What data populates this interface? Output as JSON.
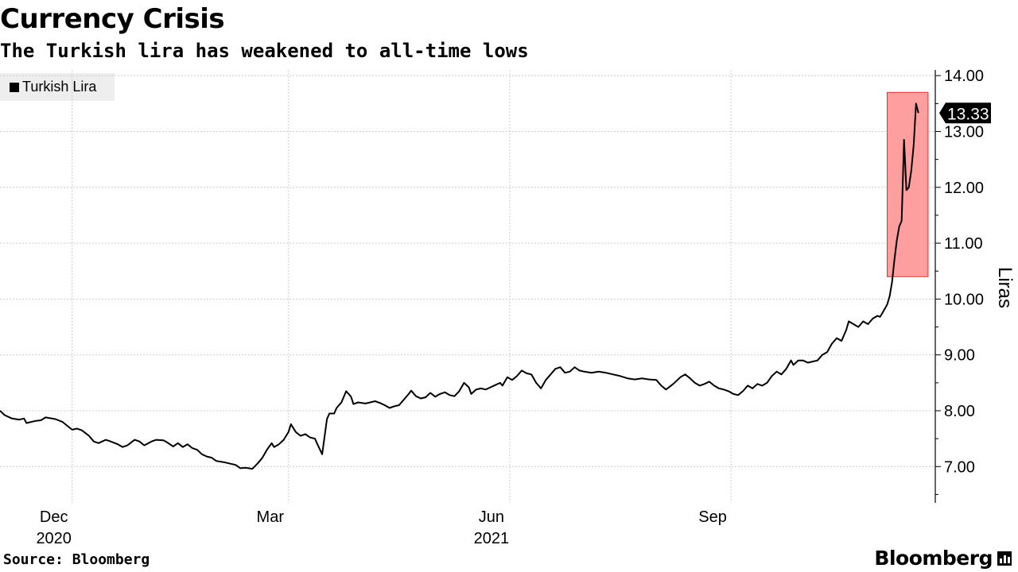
{
  "title": "Currency Crisis",
  "subtitle": "The Turkish lira has weakened to all-time lows",
  "source": "Source: Bloomberg",
  "brand": "Bloomberg",
  "colors": {
    "line": "#000000",
    "highlight_fill": "#ff9e9e",
    "highlight_stroke": "#e03030",
    "grid": "#cccccc"
  },
  "chart_data": {
    "type": "line",
    "title": "Currency Crisis",
    "subtitle": "The Turkish lira has weakened to all-time lows",
    "ylabel": "Liras",
    "ylim": [
      6.4,
      14.2
    ],
    "y_ticks": [
      7,
      8,
      9,
      10,
      11,
      12,
      13,
      14
    ],
    "y_tick_labels": [
      "7.00",
      "8.00",
      "9.00",
      "10.00",
      "11.00",
      "12.00",
      "13.00",
      "14.00"
    ],
    "x_range": [
      "2020-11-01",
      "2021-11-25"
    ],
    "x_ticks": [
      {
        "date": "2020-12-01",
        "label": "Dec",
        "year": "2020"
      },
      {
        "date": "2021-03-01",
        "label": "Mar",
        "year": ""
      },
      {
        "date": "2021-06-01",
        "label": "Jun",
        "year": "2021"
      },
      {
        "date": "2021-09-01",
        "label": "Sep",
        "year": ""
      }
    ],
    "grid": true,
    "legend_position": "top-left",
    "series": [
      {
        "name": "Turkish Lira",
        "color": "#000000",
        "points": [
          [
            "2020-11-01",
            8.0
          ],
          [
            "2020-11-03",
            7.92
          ],
          [
            "2020-11-06",
            7.86
          ],
          [
            "2020-11-09",
            7.84
          ],
          [
            "2020-11-11",
            7.86
          ],
          [
            "2020-11-12",
            7.78
          ],
          [
            "2020-11-16",
            7.82
          ],
          [
            "2020-11-18",
            7.83
          ],
          [
            "2020-11-20",
            7.88
          ],
          [
            "2020-11-24",
            7.85
          ],
          [
            "2020-11-27",
            7.8
          ],
          [
            "2020-12-01",
            7.66
          ],
          [
            "2020-12-03",
            7.68
          ],
          [
            "2020-12-05",
            7.65
          ],
          [
            "2020-12-08",
            7.55
          ],
          [
            "2020-12-10",
            7.45
          ],
          [
            "2020-12-12",
            7.42
          ],
          [
            "2020-12-15",
            7.48
          ],
          [
            "2020-12-17",
            7.45
          ],
          [
            "2020-12-20",
            7.4
          ],
          [
            "2020-12-22",
            7.35
          ],
          [
            "2020-12-24",
            7.38
          ],
          [
            "2020-12-27",
            7.48
          ],
          [
            "2020-12-29",
            7.45
          ],
          [
            "2020-12-31",
            7.38
          ],
          [
            "2021-01-03",
            7.45
          ],
          [
            "2021-01-05",
            7.48
          ],
          [
            "2021-01-08",
            7.47
          ],
          [
            "2021-01-10",
            7.42
          ],
          [
            "2021-01-12",
            7.36
          ],
          [
            "2021-01-14",
            7.42
          ],
          [
            "2021-01-16",
            7.35
          ],
          [
            "2021-01-18",
            7.4
          ],
          [
            "2021-01-20",
            7.33
          ],
          [
            "2021-01-22",
            7.3
          ],
          [
            "2021-01-24",
            7.22
          ],
          [
            "2021-01-26",
            7.18
          ],
          [
            "2021-01-28",
            7.16
          ],
          [
            "2021-01-30",
            7.1
          ],
          [
            "2021-02-02",
            7.08
          ],
          [
            "2021-02-05",
            7.05
          ],
          [
            "2021-02-07",
            7.03
          ],
          [
            "2021-02-09",
            6.97
          ],
          [
            "2021-02-11",
            6.98
          ],
          [
            "2021-02-14",
            6.96
          ],
          [
            "2021-02-16",
            7.05
          ],
          [
            "2021-02-18",
            7.15
          ],
          [
            "2021-02-20",
            7.3
          ],
          [
            "2021-02-22",
            7.42
          ],
          [
            "2021-02-23",
            7.35
          ],
          [
            "2021-02-25",
            7.4
          ],
          [
            "2021-02-27",
            7.48
          ],
          [
            "2021-03-01",
            7.62
          ],
          [
            "2021-03-02",
            7.76
          ],
          [
            "2021-03-04",
            7.62
          ],
          [
            "2021-03-06",
            7.55
          ],
          [
            "2021-03-08",
            7.58
          ],
          [
            "2021-03-10",
            7.52
          ],
          [
            "2021-03-12",
            7.5
          ],
          [
            "2021-03-13",
            7.4
          ],
          [
            "2021-03-15",
            7.22
          ],
          [
            "2021-03-17",
            7.85
          ],
          [
            "2021-03-18",
            7.95
          ],
          [
            "2021-03-20",
            7.95
          ],
          [
            "2021-03-21",
            8.05
          ],
          [
            "2021-03-23",
            8.15
          ],
          [
            "2021-03-25",
            8.35
          ],
          [
            "2021-03-27",
            8.25
          ],
          [
            "2021-03-28",
            8.12
          ],
          [
            "2021-03-30",
            8.15
          ],
          [
            "2021-04-02",
            8.13
          ],
          [
            "2021-04-04",
            8.15
          ],
          [
            "2021-04-06",
            8.17
          ],
          [
            "2021-04-08",
            8.14
          ],
          [
            "2021-04-10",
            8.1
          ],
          [
            "2021-04-12",
            8.05
          ],
          [
            "2021-04-14",
            8.08
          ],
          [
            "2021-04-16",
            8.1
          ],
          [
            "2021-04-18",
            8.2
          ],
          [
            "2021-04-20",
            8.3
          ],
          [
            "2021-04-21",
            8.36
          ],
          [
            "2021-04-23",
            8.26
          ],
          [
            "2021-04-25",
            8.22
          ],
          [
            "2021-04-27",
            8.24
          ],
          [
            "2021-04-29",
            8.32
          ],
          [
            "2021-05-01",
            8.25
          ],
          [
            "2021-05-03",
            8.3
          ],
          [
            "2021-05-05",
            8.33
          ],
          [
            "2021-05-07",
            8.28
          ],
          [
            "2021-05-09",
            8.26
          ],
          [
            "2021-05-11",
            8.35
          ],
          [
            "2021-05-13",
            8.5
          ],
          [
            "2021-05-15",
            8.42
          ],
          [
            "2021-05-16",
            8.3
          ],
          [
            "2021-05-18",
            8.38
          ],
          [
            "2021-05-20",
            8.4
          ],
          [
            "2021-05-22",
            8.38
          ],
          [
            "2021-05-24",
            8.42
          ],
          [
            "2021-05-26",
            8.46
          ],
          [
            "2021-05-28",
            8.5
          ],
          [
            "2021-05-29",
            8.45
          ],
          [
            "2021-05-31",
            8.6
          ],
          [
            "2021-06-02",
            8.55
          ],
          [
            "2021-06-04",
            8.62
          ],
          [
            "2021-06-06",
            8.72
          ],
          [
            "2021-06-08",
            8.67
          ],
          [
            "2021-06-10",
            8.65
          ],
          [
            "2021-06-12",
            8.5
          ],
          [
            "2021-06-14",
            8.4
          ],
          [
            "2021-06-16",
            8.55
          ],
          [
            "2021-06-18",
            8.65
          ],
          [
            "2021-06-20",
            8.75
          ],
          [
            "2021-06-22",
            8.78
          ],
          [
            "2021-06-24",
            8.68
          ],
          [
            "2021-06-26",
            8.7
          ],
          [
            "2021-06-28",
            8.78
          ],
          [
            "2021-06-30",
            8.72
          ],
          [
            "2021-07-02",
            8.7
          ],
          [
            "2021-07-05",
            8.68
          ],
          [
            "2021-07-08",
            8.7
          ],
          [
            "2021-07-11",
            8.68
          ],
          [
            "2021-07-14",
            8.65
          ],
          [
            "2021-07-17",
            8.62
          ],
          [
            "2021-07-20",
            8.58
          ],
          [
            "2021-07-23",
            8.56
          ],
          [
            "2021-07-26",
            8.58
          ],
          [
            "2021-07-29",
            8.56
          ],
          [
            "2021-08-01",
            8.55
          ],
          [
            "2021-08-03",
            8.45
          ],
          [
            "2021-08-05",
            8.38
          ],
          [
            "2021-08-08",
            8.48
          ],
          [
            "2021-08-11",
            8.6
          ],
          [
            "2021-08-13",
            8.65
          ],
          [
            "2021-08-15",
            8.58
          ],
          [
            "2021-08-17",
            8.5
          ],
          [
            "2021-08-19",
            8.45
          ],
          [
            "2021-08-21",
            8.48
          ],
          [
            "2021-08-23",
            8.52
          ],
          [
            "2021-08-25",
            8.45
          ],
          [
            "2021-08-27",
            8.4
          ],
          [
            "2021-08-29",
            8.38
          ],
          [
            "2021-08-31",
            8.35
          ],
          [
            "2021-09-02",
            8.3
          ],
          [
            "2021-09-04",
            8.28
          ],
          [
            "2021-09-06",
            8.35
          ],
          [
            "2021-09-08",
            8.45
          ],
          [
            "2021-09-10",
            8.4
          ],
          [
            "2021-09-12",
            8.48
          ],
          [
            "2021-09-14",
            8.45
          ],
          [
            "2021-09-16",
            8.5
          ],
          [
            "2021-09-18",
            8.62
          ],
          [
            "2021-09-20",
            8.7
          ],
          [
            "2021-09-22",
            8.65
          ],
          [
            "2021-09-24",
            8.75
          ],
          [
            "2021-09-26",
            8.9
          ],
          [
            "2021-09-27",
            8.82
          ],
          [
            "2021-09-29",
            8.9
          ],
          [
            "2021-10-01",
            8.9
          ],
          [
            "2021-10-03",
            8.86
          ],
          [
            "2021-10-05",
            8.88
          ],
          [
            "2021-10-07",
            8.9
          ],
          [
            "2021-10-09",
            9.0
          ],
          [
            "2021-10-11",
            9.05
          ],
          [
            "2021-10-13",
            9.2
          ],
          [
            "2021-10-15",
            9.3
          ],
          [
            "2021-10-17",
            9.25
          ],
          [
            "2021-10-19",
            9.45
          ],
          [
            "2021-10-20",
            9.6
          ],
          [
            "2021-10-22",
            9.55
          ],
          [
            "2021-10-24",
            9.5
          ],
          [
            "2021-10-26",
            9.6
          ],
          [
            "2021-10-28",
            9.55
          ],
          [
            "2021-10-30",
            9.65
          ],
          [
            "2021-11-01",
            9.7
          ],
          [
            "2021-11-02",
            9.68
          ],
          [
            "2021-11-03",
            9.75
          ],
          [
            "2021-11-05",
            9.9
          ],
          [
            "2021-11-06",
            10.05
          ],
          [
            "2021-11-07",
            10.3
          ],
          [
            "2021-11-08",
            10.7
          ],
          [
            "2021-11-09",
            11.05
          ],
          [
            "2021-11-10",
            11.3
          ],
          [
            "2021-11-11",
            11.4
          ],
          [
            "2021-11-12",
            12.85
          ],
          [
            "2021-11-13",
            11.95
          ],
          [
            "2021-11-14",
            12.0
          ],
          [
            "2021-11-15",
            12.3
          ],
          [
            "2021-11-16",
            12.75
          ],
          [
            "2021-11-17",
            13.5
          ],
          [
            "2021-11-18",
            13.33
          ]
        ]
      }
    ],
    "annotations": [
      {
        "type": "last-value-label",
        "value": 13.33,
        "label": "13.33"
      },
      {
        "type": "highlight-box",
        "x_from": "2021-11-05",
        "x_to": "2021-11-22",
        "y_from": 10.4,
        "y_to": 13.7
      }
    ]
  }
}
